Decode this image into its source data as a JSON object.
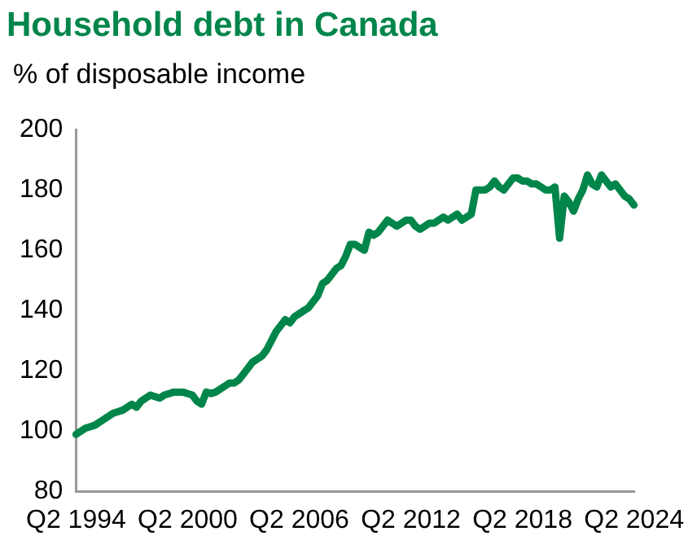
{
  "chart_data": {
    "type": "line",
    "title": "Household debt in Canada",
    "ylabel": "% of disposable income",
    "categories": [
      "Q2 1994",
      null,
      null,
      null,
      null,
      null,
      null,
      null,
      null,
      null,
      null,
      null,
      null,
      null,
      null,
      null,
      null,
      null,
      null,
      null,
      null,
      null,
      null,
      null,
      "Q2 2000",
      null,
      null,
      null,
      null,
      null,
      null,
      null,
      null,
      null,
      null,
      null,
      null,
      null,
      null,
      null,
      null,
      null,
      null,
      null,
      null,
      null,
      null,
      null,
      "Q2 2006",
      null,
      null,
      null,
      null,
      null,
      null,
      null,
      null,
      null,
      null,
      null,
      null,
      null,
      null,
      null,
      null,
      null,
      null,
      null,
      null,
      null,
      null,
      null,
      "Q2 2012",
      null,
      null,
      null,
      null,
      null,
      null,
      null,
      null,
      null,
      null,
      null,
      null,
      null,
      null,
      null,
      null,
      null,
      null,
      null,
      null,
      null,
      null,
      null,
      "Q2 2018",
      null,
      null,
      null,
      null,
      null,
      null,
      null,
      null,
      null,
      null,
      null,
      null,
      null,
      null,
      null,
      null,
      null,
      null,
      null,
      null,
      null,
      null,
      null,
      "Q2 2024"
    ],
    "series": [
      {
        "color": "#00854a",
        "values": [
          99,
          100,
          101,
          101.5,
          102,
          103,
          104,
          105,
          106,
          106.5,
          107,
          108,
          109,
          108,
          110,
          111,
          112,
          111.5,
          111,
          112,
          112.5,
          113,
          113,
          113,
          112.5,
          112,
          110,
          109,
          113,
          112.5,
          113,
          114,
          115,
          116,
          116,
          117,
          119,
          121,
          123,
          124,
          125,
          127,
          130,
          133,
          135,
          137,
          136,
          138,
          139,
          140,
          141,
          143,
          145,
          149,
          150,
          152,
          154,
          155,
          158,
          162,
          162,
          161,
          160,
          166,
          165,
          166,
          168,
          170,
          169,
          168,
          169,
          170,
          170,
          168,
          167,
          168,
          169,
          169,
          170,
          171,
          170,
          171,
          172,
          170,
          171,
          172,
          180,
          180,
          180,
          181,
          183,
          181,
          180,
          182,
          184,
          184,
          183,
          183,
          182,
          182,
          181,
          180,
          180,
          181,
          164,
          178,
          176,
          173,
          177,
          180,
          185,
          182,
          181,
          185,
          183,
          181,
          182,
          180,
          178,
          177,
          175
        ]
      }
    ],
    "ylim": [
      80,
      200
    ],
    "yticks": [
      80,
      100,
      120,
      140,
      160,
      180,
      200
    ],
    "grid": false,
    "legend": false,
    "marker": "none",
    "line_style": "solid"
  }
}
